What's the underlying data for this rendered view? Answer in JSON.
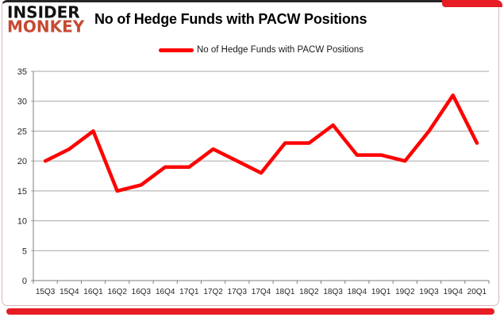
{
  "logo": {
    "line1": "INSIDER",
    "line2": "MONKEY"
  },
  "header": {
    "title": "No of Hedge Funds with PACW Positions"
  },
  "legend": {
    "label": "No of Hedge Funds with PACW Positions"
  },
  "colors": {
    "line": "#fe0000",
    "logo_red": "#c64a33",
    "grid": "#a6a6a6",
    "axis": "#7f7f7f",
    "axis_text": "#262626",
    "card_red_bar": "#e81c24"
  },
  "chart_data": {
    "type": "line",
    "title": "No of Hedge Funds with PACW Positions",
    "categories": [
      "15Q3",
      "15Q4",
      "16Q1",
      "16Q2",
      "16Q3",
      "16Q4",
      "17Q1",
      "17Q2",
      "17Q3",
      "17Q4",
      "18Q1",
      "18Q2",
      "18Q3",
      "18Q4",
      "19Q1",
      "19Q2",
      "19Q3",
      "19Q4",
      "20Q1"
    ],
    "series": [
      {
        "name": "No of Hedge Funds with PACW Positions",
        "values": [
          20,
          22,
          25,
          15,
          16,
          19,
          19,
          22,
          20,
          18,
          23,
          23,
          26,
          21,
          21,
          20,
          25,
          31,
          23
        ]
      }
    ],
    "xlabel": "",
    "ylabel": "",
    "ylim": [
      0,
      35
    ],
    "ytick_step": 5,
    "yticks": [
      0,
      5,
      10,
      15,
      20,
      25,
      30,
      35
    ],
    "grid": true,
    "legend_position": "top-center"
  }
}
